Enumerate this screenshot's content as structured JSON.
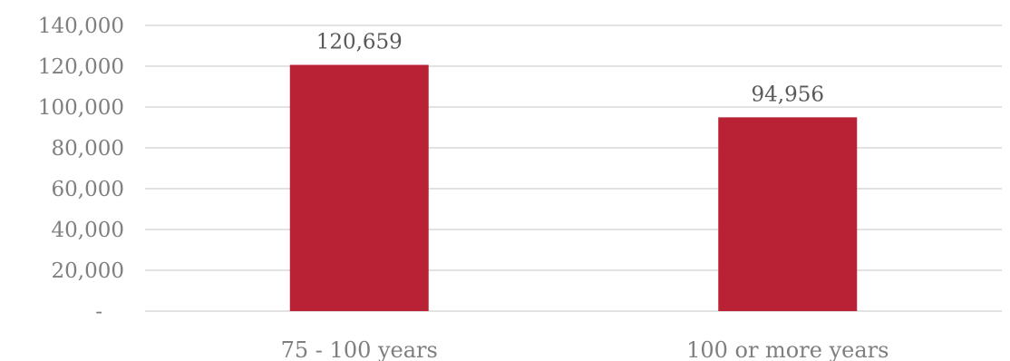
{
  "chart_data": {
    "type": "bar",
    "categories": [
      "75 - 100 years",
      "100 or more years"
    ],
    "values": [
      120659,
      94956
    ],
    "data_labels": [
      "120,659",
      "94,956"
    ],
    "bar_color": "#b92235",
    "ylim": [
      0,
      140000
    ],
    "yticks": [
      0,
      20000,
      40000,
      60000,
      80000,
      100000,
      120000,
      140000
    ],
    "ytick_labels": [
      "-",
      "20,000",
      "40,000",
      "60,000",
      "80,000",
      "100,000",
      "120,000",
      "140,000"
    ],
    "grid": true,
    "legend": "none",
    "title": "",
    "xlabel": "",
    "ylabel": ""
  }
}
